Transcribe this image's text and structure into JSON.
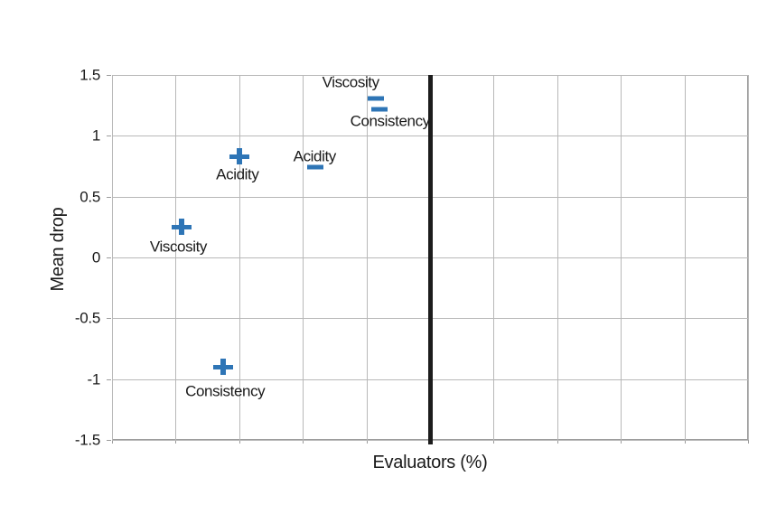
{
  "colors": {
    "marker_blue": "#2E75B6",
    "gridline": "#b8b8b8",
    "frame": "#9c9c9c",
    "reference_line": "#1c1c1c",
    "text": "#1a1a1a",
    "background": "#ffffff"
  },
  "chart_data": {
    "type": "scatter",
    "title": "",
    "xlabel": "Evaluators (%)",
    "ylabel": "Mean drop",
    "xlim": [
      0,
      100
    ],
    "ylim": [
      -1.5,
      1.5
    ],
    "grid": true,
    "x_gridline_step": 10,
    "x_tick_labels_visible": false,
    "y_ticks": [
      {
        "label": "1.5",
        "value": 1.5
      },
      {
        "label": "1",
        "value": 1
      },
      {
        "label": "0.5",
        "value": 0.5
      },
      {
        "label": "0",
        "value": 0
      },
      {
        "label": "-0.5",
        "value": -0.5
      },
      {
        "label": "-1",
        "value": -1
      },
      {
        "label": "-1.5",
        "value": -1.5
      }
    ],
    "reference_line": {
      "orientation": "vertical",
      "x": 50
    },
    "series": [
      {
        "name": "plus",
        "marker": "plus",
        "color": "#2E75B6",
        "points": [
          {
            "label": "Viscosity",
            "x": 11,
            "y": 0.25,
            "label_dx": -4,
            "label_dy": 22
          },
          {
            "label": "Acidity",
            "x": 20,
            "y": 0.83,
            "label_dx": -2,
            "label_dy": 20
          },
          {
            "label": "Consistency",
            "x": 17.5,
            "y": -0.9,
            "label_dx": 2,
            "label_dy": 27
          }
        ]
      },
      {
        "name": "minus",
        "marker": "minus",
        "color": "#2E75B6",
        "points": [
          {
            "label": "Acidity",
            "x": 32,
            "y": 0.74,
            "label_dx": -1,
            "label_dy": -12
          },
          {
            "label": "Viscosity",
            "x": 41.5,
            "y": 1.31,
            "label_dx": -28,
            "label_dy": -18
          },
          {
            "label": "Consistency",
            "x": 42,
            "y": 1.22,
            "label_dx": 12,
            "label_dy": 13
          }
        ]
      }
    ]
  }
}
